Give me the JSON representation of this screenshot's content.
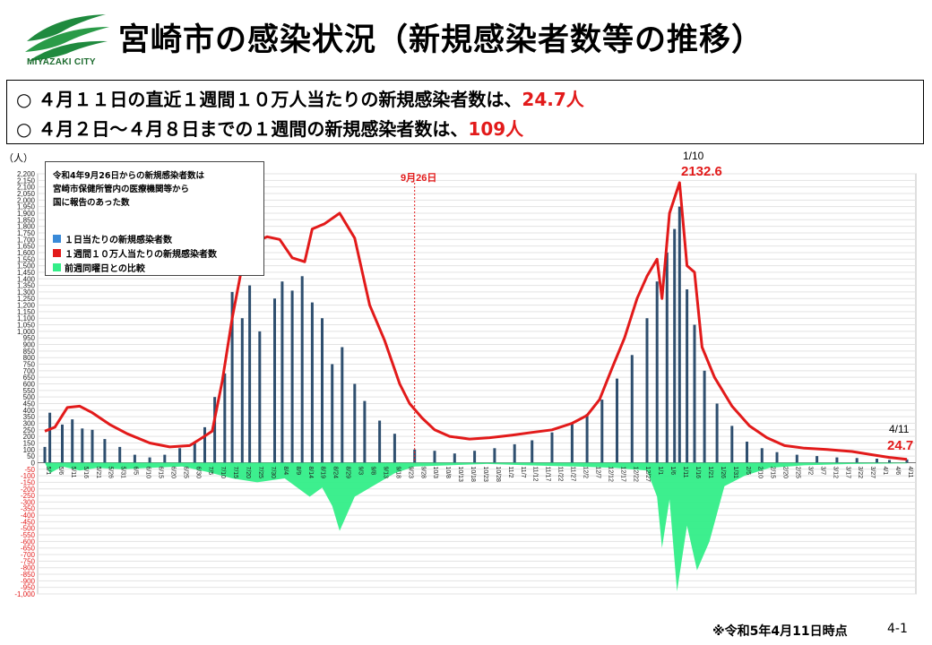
{
  "header": {
    "logo_text": "MIYAZAKI CITY",
    "title": "宮崎市の感染状況（新規感染者数等の推移）"
  },
  "summary": {
    "line1_prefix": "○ ４月１１日の直近１週間１０万人当たりの新規感染者数は、",
    "line1_value": "24.7人",
    "line2_prefix": "○ ４月２日～４月８日までの１週間の新規感染者数は、",
    "line2_value": "109人"
  },
  "legend": {
    "note_lines": [
      "令和4年9月26日からの新規感染者数は",
      "宮崎市保健所管内の医療機関等から",
      "国に報告のあった数"
    ],
    "items": [
      {
        "label": "１日当たりの新規感染者数",
        "color": "#3a8ad8"
      },
      {
        "label": "１週間１０万人当たりの新規感染者数",
        "color": "#e21a1a"
      },
      {
        "label": "前週同曜日との比較",
        "color": "#33ee88"
      }
    ]
  },
  "annotations": {
    "y_unit": "（人）",
    "marker_label": "9月26日",
    "peak_date": "1/10",
    "peak_value": "2132.6",
    "last_date": "4/11",
    "last_value": "24.7"
  },
  "footer": {
    "note": "※令和5年4月11日時点",
    "page": "4-1"
  },
  "colors": {
    "bars": "#2f4f6f",
    "weekly_line": "#e21a1a",
    "comparison": "#33ee88",
    "marker": "#e21a1a"
  },
  "chart_data": {
    "type": "bar",
    "title": "",
    "ylabel": "（人）",
    "ylim": [
      -1000,
      2200
    ],
    "y_ticks": [
      -1000,
      -950,
      -900,
      -850,
      -800,
      -750,
      -700,
      -650,
      -600,
      -550,
      -500,
      -450,
      -400,
      -350,
      -300,
      -250,
      -200,
      -150,
      -100,
      -50,
      0,
      50,
      100,
      150,
      200,
      250,
      300,
      350,
      400,
      450,
      500,
      550,
      600,
      650,
      700,
      750,
      800,
      850,
      900,
      950,
      1000,
      1050,
      1100,
      1150,
      1200,
      1250,
      1300,
      1350,
      1400,
      1450,
      1500,
      1550,
      1600,
      1650,
      1700,
      1750,
      1800,
      1850,
      1900,
      1950,
      2000,
      2050,
      2100,
      2150,
      2200
    ],
    "x_range": [
      "2022-05-01",
      "2023-04-11"
    ],
    "vertical_marker": {
      "date": "2022-09-26",
      "label": "9月26日"
    },
    "series": [
      {
        "name": "１日当たりの新規感染者数",
        "style": "bars",
        "points": [
          [
            "2022-05-01",
            120
          ],
          [
            "2022-05-03",
            380
          ],
          [
            "2022-05-08",
            290
          ],
          [
            "2022-05-12",
            330
          ],
          [
            "2022-05-16",
            260
          ],
          [
            "2022-05-20",
            250
          ],
          [
            "2022-05-25",
            180
          ],
          [
            "2022-05-31",
            120
          ],
          [
            "2022-06-06",
            60
          ],
          [
            "2022-06-12",
            40
          ],
          [
            "2022-06-18",
            60
          ],
          [
            "2022-06-24",
            110
          ],
          [
            "2022-06-30",
            160
          ],
          [
            "2022-07-04",
            270
          ],
          [
            "2022-07-08",
            500
          ],
          [
            "2022-07-12",
            680
          ],
          [
            "2022-07-15",
            1300
          ],
          [
            "2022-07-19",
            1100
          ],
          [
            "2022-07-22",
            1350
          ],
          [
            "2022-07-26",
            1000
          ],
          [
            "2022-08-01",
            1250
          ],
          [
            "2022-08-04",
            1380
          ],
          [
            "2022-08-08",
            1310
          ],
          [
            "2022-08-12",
            1420
          ],
          [
            "2022-08-16",
            1220
          ],
          [
            "2022-08-20",
            1100
          ],
          [
            "2022-08-24",
            750
          ],
          [
            "2022-08-28",
            880
          ],
          [
            "2022-09-02",
            600
          ],
          [
            "2022-09-06",
            470
          ],
          [
            "2022-09-12",
            320
          ],
          [
            "2022-09-18",
            220
          ],
          [
            "2022-09-26",
            100
          ],
          [
            "2022-10-04",
            90
          ],
          [
            "2022-10-12",
            70
          ],
          [
            "2022-10-20",
            90
          ],
          [
            "2022-10-28",
            110
          ],
          [
            "2022-11-05",
            140
          ],
          [
            "2022-11-12",
            170
          ],
          [
            "2022-11-20",
            230
          ],
          [
            "2022-11-28",
            300
          ],
          [
            "2022-12-04",
            370
          ],
          [
            "2022-12-10",
            480
          ],
          [
            "2022-12-16",
            640
          ],
          [
            "2022-12-22",
            820
          ],
          [
            "2022-12-28",
            1100
          ],
          [
            "2023-01-01",
            1380
          ],
          [
            "2023-01-05",
            1600
          ],
          [
            "2023-01-08",
            1780
          ],
          [
            "2023-01-10",
            1950
          ],
          [
            "2023-01-13",
            1320
          ],
          [
            "2023-01-16",
            1050
          ],
          [
            "2023-01-20",
            700
          ],
          [
            "2023-01-25",
            450
          ],
          [
            "2023-01-31",
            280
          ],
          [
            "2023-02-06",
            160
          ],
          [
            "2023-02-12",
            110
          ],
          [
            "2023-02-18",
            80
          ],
          [
            "2023-02-26",
            60
          ],
          [
            "2023-03-06",
            50
          ],
          [
            "2023-03-14",
            40
          ],
          [
            "2023-03-22",
            35
          ],
          [
            "2023-03-30",
            30
          ],
          [
            "2023-04-04",
            20
          ],
          [
            "2023-04-11",
            25
          ]
        ]
      },
      {
        "name": "１週間１０万人当たりの新規感染者数",
        "style": "line",
        "points": [
          [
            "2022-05-01",
            240
          ],
          [
            "2022-05-05",
            270
          ],
          [
            "2022-05-10",
            420
          ],
          [
            "2022-05-15",
            430
          ],
          [
            "2022-05-20",
            380
          ],
          [
            "2022-05-27",
            290
          ],
          [
            "2022-06-03",
            220
          ],
          [
            "2022-06-12",
            150
          ],
          [
            "2022-06-20",
            120
          ],
          [
            "2022-06-28",
            130
          ],
          [
            "2022-07-03",
            190
          ],
          [
            "2022-07-07",
            240
          ],
          [
            "2022-07-11",
            620
          ],
          [
            "2022-07-15",
            1100
          ],
          [
            "2022-07-19",
            1500
          ],
          [
            "2022-07-24",
            1680
          ],
          [
            "2022-07-29",
            1720
          ],
          [
            "2022-08-03",
            1700
          ],
          [
            "2022-08-08",
            1560
          ],
          [
            "2022-08-13",
            1530
          ],
          [
            "2022-08-16",
            1780
          ],
          [
            "2022-08-21",
            1820
          ],
          [
            "2022-08-27",
            1900
          ],
          [
            "2022-09-02",
            1710
          ],
          [
            "2022-09-08",
            1200
          ],
          [
            "2022-09-14",
            930
          ],
          [
            "2022-09-20",
            600
          ],
          [
            "2022-09-24",
            450
          ],
          [
            "2022-09-29",
            340
          ],
          [
            "2022-10-04",
            250
          ],
          [
            "2022-10-10",
            200
          ],
          [
            "2022-10-18",
            180
          ],
          [
            "2022-10-26",
            190
          ],
          [
            "2022-11-04",
            210
          ],
          [
            "2022-11-12",
            230
          ],
          [
            "2022-11-20",
            250
          ],
          [
            "2022-11-28",
            300
          ],
          [
            "2022-12-04",
            360
          ],
          [
            "2022-12-09",
            480
          ],
          [
            "2022-12-14",
            720
          ],
          [
            "2022-12-19",
            950
          ],
          [
            "2022-12-24",
            1250
          ],
          [
            "2022-12-28",
            1420
          ],
          [
            "2023-01-01",
            1550
          ],
          [
            "2023-01-03",
            1250
          ],
          [
            "2023-01-06",
            1900
          ],
          [
            "2023-01-10",
            2132.6
          ],
          [
            "2023-01-13",
            1500
          ],
          [
            "2023-01-16",
            1450
          ],
          [
            "2023-01-19",
            880
          ],
          [
            "2023-01-24",
            650
          ],
          [
            "2023-01-31",
            430
          ],
          [
            "2023-02-07",
            280
          ],
          [
            "2023-02-14",
            190
          ],
          [
            "2023-02-21",
            130
          ],
          [
            "2023-03-01",
            110
          ],
          [
            "2023-03-10",
            100
          ],
          [
            "2023-03-20",
            85
          ],
          [
            "2023-03-28",
            60
          ],
          [
            "2023-04-04",
            40
          ],
          [
            "2023-04-11",
            24.7
          ]
        ]
      },
      {
        "name": "前週同曜日との比較",
        "style": "area",
        "points": [
          [
            "2022-05-01",
            0
          ],
          [
            "2022-05-03",
            -80
          ],
          [
            "2022-05-08",
            -30
          ],
          [
            "2022-05-15",
            -60
          ],
          [
            "2022-05-22",
            -40
          ],
          [
            "2022-06-01",
            -50
          ],
          [
            "2022-06-12",
            -40
          ],
          [
            "2022-06-25",
            -30
          ],
          [
            "2022-07-05",
            -70
          ],
          [
            "2022-07-15",
            -120
          ],
          [
            "2022-07-25",
            -150
          ],
          [
            "2022-08-05",
            -120
          ],
          [
            "2022-08-15",
            -260
          ],
          [
            "2022-08-20",
            -190
          ],
          [
            "2022-08-24",
            -330
          ],
          [
            "2022-08-27",
            -520
          ],
          [
            "2022-09-02",
            -260
          ],
          [
            "2022-09-10",
            -170
          ],
          [
            "2022-09-18",
            -80
          ],
          [
            "2022-09-26",
            -30
          ],
          [
            "2022-10-10",
            -20
          ],
          [
            "2022-10-25",
            -10
          ],
          [
            "2022-11-10",
            -20
          ],
          [
            "2022-11-30",
            -30
          ],
          [
            "2022-12-15",
            -40
          ],
          [
            "2022-12-28",
            -60
          ],
          [
            "2023-01-01",
            -260
          ],
          [
            "2023-01-03",
            -650
          ],
          [
            "2023-01-06",
            -280
          ],
          [
            "2023-01-09",
            -980
          ],
          [
            "2023-01-13",
            -480
          ],
          [
            "2023-01-17",
            -820
          ],
          [
            "2023-01-22",
            -600
          ],
          [
            "2023-01-28",
            -180
          ],
          [
            "2023-02-05",
            -100
          ],
          [
            "2023-02-15",
            -40
          ],
          [
            "2023-03-01",
            -20
          ],
          [
            "2023-03-20",
            -10
          ],
          [
            "2023-04-11",
            -5
          ]
        ]
      }
    ]
  }
}
